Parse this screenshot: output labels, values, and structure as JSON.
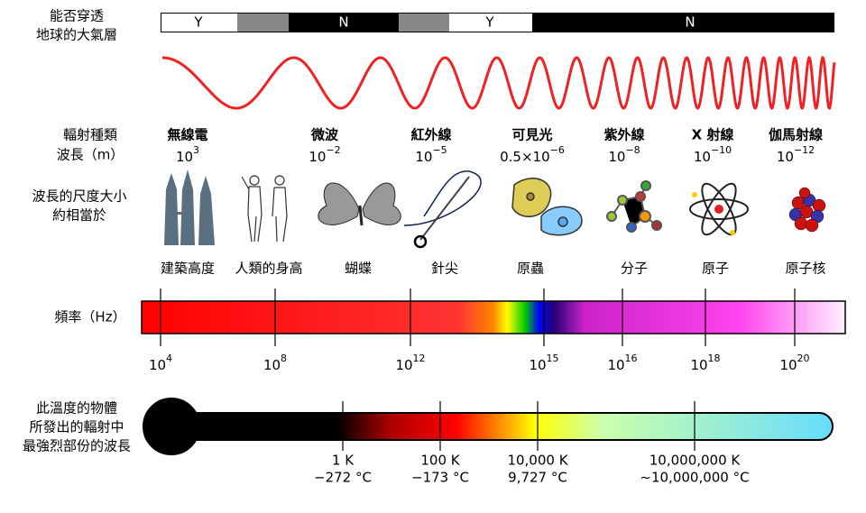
{
  "labels": {
    "penetration": [
      "能否穿透",
      "地球的大氣層"
    ],
    "radiation_type": "輻射種類",
    "wavelength": "波長（m）",
    "scale": [
      "波長的尺度大小",
      "約相當於"
    ],
    "frequency": "頻率（Hz）",
    "temperature": [
      "此溫度的物體",
      "所發出的輻射中",
      "最強烈部份的波長"
    ]
  },
  "penetration": [
    "Y",
    "N",
    "Y",
    "N"
  ],
  "radiation": [
    {
      "name": "無線電",
      "base": "10",
      "exponent": "3"
    },
    {
      "name": "微波",
      "base": "10",
      "exponent": "−2"
    },
    {
      "name": "紅外線",
      "base": "10",
      "exponent": "−5"
    },
    {
      "name": "可見光",
      "base": "0.5×10",
      "exponent": "−6"
    },
    {
      "name": "紫外線",
      "base": "10",
      "exponent": "−8"
    },
    {
      "name": "X 射線",
      "base": "10",
      "exponent": "−10"
    },
    {
      "name": "伽馬射線",
      "base": "10",
      "exponent": "−12"
    }
  ],
  "scale_objects": [
    "建築高度",
    "人類的身高",
    "蝴蝶",
    "針尖",
    "原蟲",
    "分子",
    "原子",
    "原子核"
  ],
  "frequency_ticks": [
    {
      "base": "10",
      "exponent": "4"
    },
    {
      "base": "10",
      "exponent": "8"
    },
    {
      "base": "10",
      "exponent": "12"
    },
    {
      "base": "10",
      "exponent": "15"
    },
    {
      "base": "10",
      "exponent": "16"
    },
    {
      "base": "10",
      "exponent": "18"
    },
    {
      "base": "10",
      "exponent": "20"
    }
  ],
  "temperature_ticks": [
    {
      "kelvin": "1 K",
      "celsius": "−272 °C"
    },
    {
      "kelvin": "100 K",
      "celsius": "−173 °C"
    },
    {
      "kelvin": "10,000 K",
      "celsius": "9,727 °C"
    },
    {
      "kelvin": "10,000,000 K",
      "celsius": "~10,000,000 °C"
    }
  ]
}
